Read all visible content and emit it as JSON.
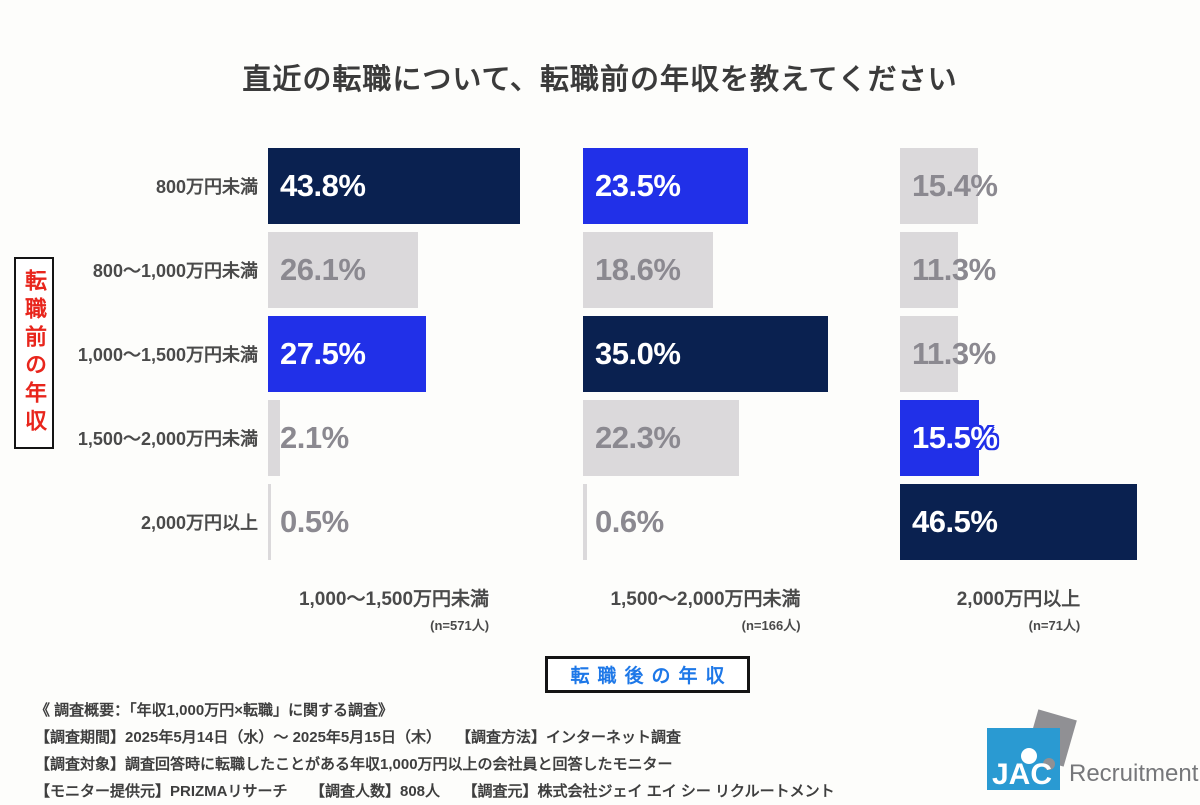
{
  "title": "直近の転職について、転職前の年収を教えてください",
  "y_axis": {
    "label": "転職前の年収"
  },
  "x_axis": {
    "label": "転職後の年収"
  },
  "chart_data": {
    "type": "bar",
    "orientation": "horizontal",
    "unit": "%",
    "row_axis_title": "転職前の年収（転職前の年収）",
    "col_axis_title": "転職後の年収（転職後の年収）",
    "row_categories": [
      "800万円未満",
      "800～1,000万円未満",
      "1,000～1,500万円未満",
      "1,500～2,000万円未満",
      "2,000万円以上"
    ],
    "columns": [
      {
        "label": "1,000～1,500万円未満",
        "n_label": "(n=571人)",
        "values": [
          43.8,
          26.1,
          27.5,
          2.1,
          0.5
        ],
        "value_labels": [
          "43.8%",
          "26.1%",
          "27.5%",
          "2.1%",
          "0.5%"
        ],
        "styles": [
          "navy",
          "gray",
          "blue",
          "gray",
          "gray"
        ]
      },
      {
        "label": "1,500～2,000万円未満",
        "n_label": "(n=166人)",
        "values": [
          23.5,
          18.6,
          35.0,
          22.3,
          0.6
        ],
        "value_labels": [
          "23.5%",
          "18.6%",
          "35.0%",
          "22.3%",
          "0.6%"
        ],
        "styles": [
          "blue",
          "gray",
          "navy",
          "gray",
          "gray"
        ]
      },
      {
        "label": "2,000万円以上",
        "n_label": "(n=71人)",
        "values": [
          15.4,
          11.3,
          11.3,
          15.5,
          46.5
        ],
        "value_labels": [
          "15.4%",
          "11.3%",
          "11.3%",
          "15.5%",
          "46.5%"
        ],
        "styles": [
          "gray",
          "gray",
          "gray",
          "blue-outline",
          "navy"
        ]
      }
    ],
    "colors": {
      "navy": "#0a2150",
      "blue": "#2130e8",
      "gray": "#dbd9db",
      "gray_text": "#8b8990"
    },
    "legend_position": "none",
    "grid": false
  },
  "footer": {
    "lines": [
      "《 調査概要：「年収1,000万円×転職」に関する調査》",
      "【調査期間】2025年5月14日（水）～ 2025年5月15日（木）　　【調査方法】インターネット調査",
      "【調査対象】調査回答時に転職したことがある年収1,000万円以上の会社員と回答したモニター",
      "【モニター提供元】PRIZMAリサーチ　　【調査人数】808人　　【調査元】株式会社ジェイ エイ シー リクルートメント"
    ]
  },
  "logo": {
    "jac": "JAC",
    "recruitment": "Recruitment"
  }
}
